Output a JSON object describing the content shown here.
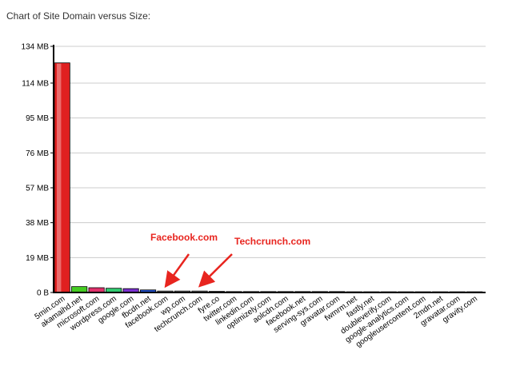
{
  "chart_data": {
    "type": "bar",
    "title": "Chart of Site Domain versus Size:",
    "xlabel": "",
    "ylabel": "",
    "ylim": [
      0,
      134
    ],
    "yticks": [
      "0 B",
      "19 MB",
      "38 MB",
      "57 MB",
      "76 MB",
      "95 MB",
      "114 MB",
      "134 MB"
    ],
    "ytick_values": [
      0,
      19,
      38,
      57,
      76,
      95,
      114,
      134
    ],
    "grid": true,
    "categories": [
      "5min.com",
      "akamaihd.net",
      "microsoft.com",
      "wordpress.com",
      "google.com",
      "fbcdn.net",
      "facebook.com",
      "wp.com",
      "techcrunch.com",
      "fyre.co",
      "twitter.com",
      "linkedin.com",
      "optimizely.com",
      "aolcdn.com",
      "facebook.net",
      "serving-sys.com",
      "gravatar.com",
      "fwmrm.net",
      "fastly.net",
      "doubleverify.com",
      "google-analytics.com",
      "googleusercontent.com",
      "2mdn.net",
      "gravatar.com",
      "gravity.com"
    ],
    "values": [
      125,
      3.2,
      2.6,
      2.3,
      2.1,
      1.4,
      0.8,
      0.8,
      0.8,
      0.6,
      0.5,
      0.5,
      0.5,
      0.5,
      0.5,
      0.5,
      0.5,
      0.4,
      0.4,
      0.4,
      0.4,
      0.4,
      0.4,
      0.4,
      0.4
    ],
    "colors": [
      "#e02020",
      "#44cc22",
      "#e0306a",
      "#30cc70",
      "#7a30d0",
      "#2050d0",
      "#a0a0a0",
      "#a0a0a0",
      "#a0a0a0",
      "#a0a0a0",
      "#a0a0a0",
      "#a0a0a0",
      "#a0a0a0",
      "#a0a0a0",
      "#a0a0a0",
      "#a0a0a0",
      "#a0a0a0",
      "#a0a0a0",
      "#a0a0a0",
      "#a0a0a0",
      "#a0a0a0",
      "#a0a0a0",
      "#a0a0a0",
      "#a0a0a0",
      "#a0a0a0"
    ],
    "annotations": [
      {
        "text": "Facebook.com",
        "target_index": 6
      },
      {
        "text": "Techcrunch.com",
        "target_index": 8
      }
    ],
    "annotation_color": "#e8251f"
  }
}
